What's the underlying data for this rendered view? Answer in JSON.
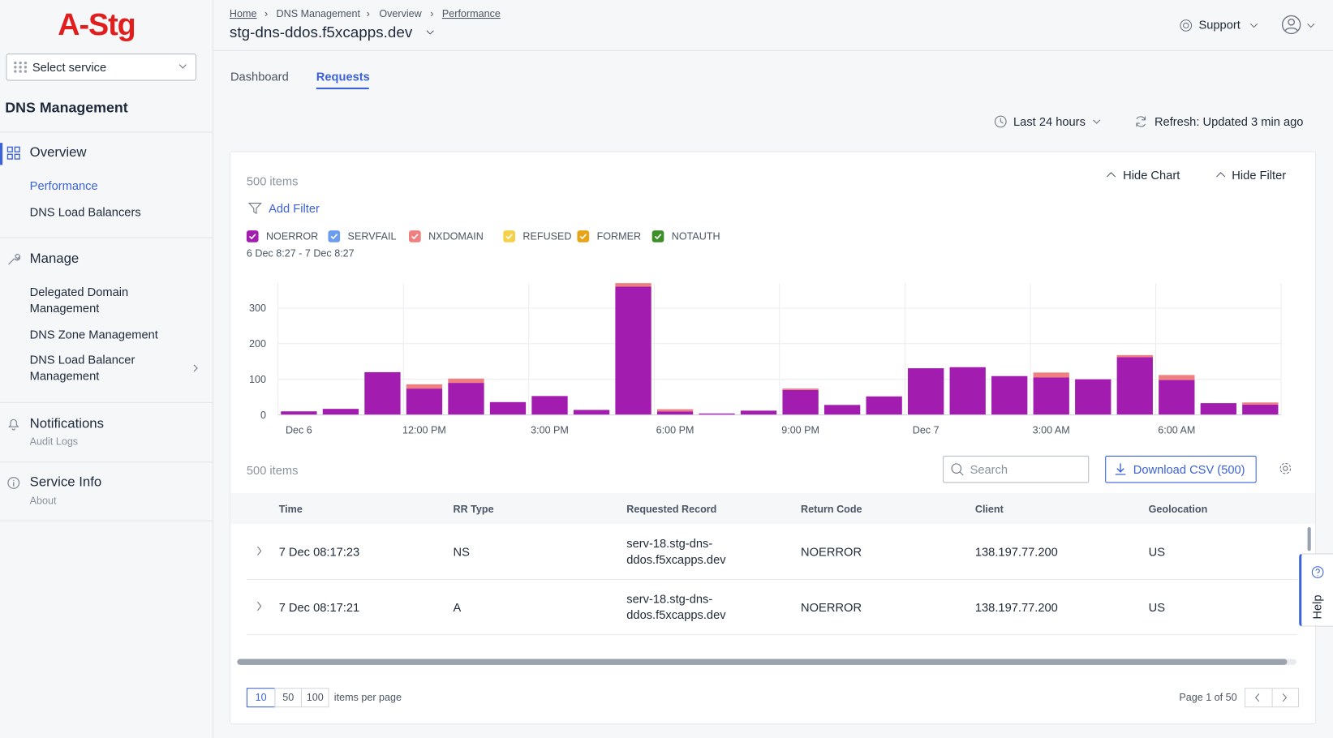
{
  "brand": "A-Stg",
  "sidebar": {
    "service_select": "Select service",
    "section": "DNS Management",
    "groups": [
      {
        "title": "Overview",
        "items": [
          "Performance",
          "DNS Load Balancers"
        ]
      },
      {
        "title": "Manage",
        "items": [
          "Delegated Domain Management",
          "DNS Zone Management",
          "DNS Load Balancer Management"
        ]
      },
      {
        "title": "Notifications",
        "subtitle": "Audit Logs"
      },
      {
        "title": "Service Info",
        "subtitle": "About"
      }
    ]
  },
  "header": {
    "breadcrumb": [
      "Home",
      "DNS Management",
      "Overview",
      "Performance"
    ],
    "title": "stg-dns-ddos.f5xcapps.dev",
    "support": "Support"
  },
  "tabs": [
    "Dashboard",
    "Requests"
  ],
  "toolbar": {
    "time_range": "Last 24 hours",
    "refresh": "Refresh: Updated 3 min ago"
  },
  "panel": {
    "item_count": "500 items",
    "hide_chart": "Hide Chart",
    "hide_filter": "Hide Filter",
    "add_filter": "Add Filter",
    "date_range": "6 Dec 8:27 - 7 Dec 8:27"
  },
  "chart_data": {
    "type": "bar",
    "stacked": true,
    "categories": [
      "Dec 6",
      null,
      null,
      "12:00 PM",
      null,
      null,
      "3:00 PM",
      null,
      null,
      "6:00 PM",
      null,
      null,
      "9:00 PM",
      null,
      null,
      "Dec 7",
      null,
      null,
      "3:00 AM",
      null,
      null,
      "6:00 AM",
      null,
      null
    ],
    "series": [
      {
        "name": "NOERROR",
        "color": "#a21caf",
        "values": [
          10,
          17,
          120,
          74,
          90,
          36,
          53,
          14,
          360,
          10,
          4,
          12,
          70,
          28,
          52,
          131,
          134,
          109,
          105,
          100,
          162,
          98,
          33,
          29
        ]
      },
      {
        "name": "SERVFAIL",
        "color": "#6b9cf0",
        "values": [
          0,
          0,
          0,
          0,
          0,
          0,
          0,
          0,
          0,
          0,
          0,
          0,
          0,
          0,
          0,
          0,
          0,
          0,
          0,
          0,
          0,
          0,
          0,
          0
        ]
      },
      {
        "name": "NXDOMAIN",
        "color": "#f07f7f",
        "values": [
          0,
          0,
          0,
          12,
          12,
          0,
          0,
          0,
          10,
          6,
          0,
          0,
          4,
          0,
          0,
          0,
          0,
          0,
          14,
          0,
          6,
          14,
          0,
          6
        ]
      },
      {
        "name": "REFUSED",
        "color": "#f5d04a",
        "values": [
          0,
          0,
          0,
          0,
          0,
          0,
          0,
          0,
          0,
          0,
          0,
          0,
          0,
          0,
          0,
          0,
          0,
          0,
          0,
          0,
          0,
          0,
          0,
          0
        ]
      },
      {
        "name": "FORMER",
        "color": "#e8a317",
        "values": [
          0,
          0,
          0,
          0,
          0,
          0,
          0,
          0,
          0,
          0,
          0,
          0,
          0,
          0,
          0,
          0,
          0,
          0,
          0,
          0,
          0,
          0,
          0,
          0
        ]
      },
      {
        "name": "NOTAUTH",
        "color": "#3d8f2a",
        "values": [
          0,
          0,
          0,
          0,
          0,
          0,
          0,
          0,
          0,
          0,
          0,
          0,
          0,
          0,
          0,
          0,
          0,
          0,
          0,
          0,
          0,
          0,
          0,
          0
        ]
      }
    ],
    "ylim": [
      0,
      370
    ],
    "yticks": [
      0,
      100,
      200,
      300
    ],
    "grid": true
  },
  "table": {
    "item_count": "500 items",
    "search_placeholder": "Search",
    "download": "Download CSV (500)",
    "columns": [
      "Time",
      "RR Type",
      "Requested Record",
      "Return Code",
      "Client",
      "Geolocation"
    ],
    "rows": [
      [
        "7 Dec 08:17:23",
        "NS",
        "serv-18.stg-dns-ddos.f5xcapps.dev",
        "NOERROR",
        "138.197.77.200",
        "US"
      ],
      [
        "7 Dec 08:17:21",
        "A",
        "serv-18.stg-dns-ddos.f5xcapps.dev",
        "NOERROR",
        "138.197.77.200",
        "US"
      ]
    ]
  },
  "pagination": {
    "sizes": [
      10,
      50,
      100
    ],
    "label": "items per page",
    "page": "Page 1 of 50"
  },
  "help": "Help"
}
